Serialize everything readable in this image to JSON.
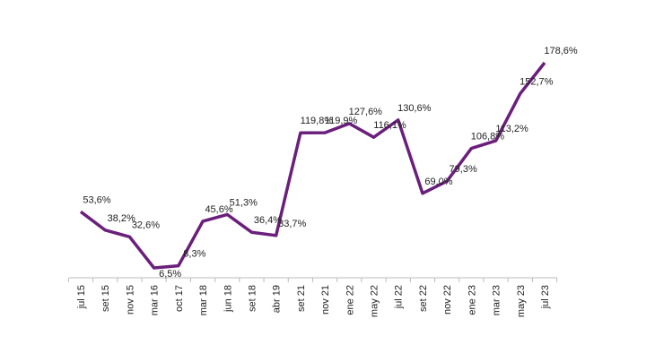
{
  "chart_data": {
    "type": "line",
    "categories": [
      "jul 15",
      "set 15",
      "nov 15",
      "mar 16",
      "oct 17",
      "mar 18",
      "jun 18",
      "set 18",
      "abr 19",
      "set 21",
      "nov 21",
      "ene 22",
      "may 22",
      "jul 22",
      "set 22",
      "nov 22",
      "ene 23",
      "mar 23",
      "may 23",
      "jul 23"
    ],
    "values": [
      53.6,
      38.2,
      32.6,
      6.5,
      8.3,
      45.6,
      51.3,
      36.4,
      33.7,
      119.8,
      119.9,
      127.6,
      116.1,
      130.6,
      69.0,
      79.3,
      106.8,
      113.2,
      152.7,
      178.6
    ],
    "value_labels": [
      "53,6%",
      "38,2%",
      "32,6%",
      "6,5%",
      "8,3%",
      "45,6%",
      "51,3%",
      "36,4%",
      "33,7%",
      "119,8%",
      "119,9%",
      "127,6%",
      "116,1%",
      "130,6%",
      "69,0%",
      "79,3%",
      "106,8%",
      "113,2%",
      "152,7%",
      "178,6%"
    ],
    "color": "#6b1f7c"
  }
}
